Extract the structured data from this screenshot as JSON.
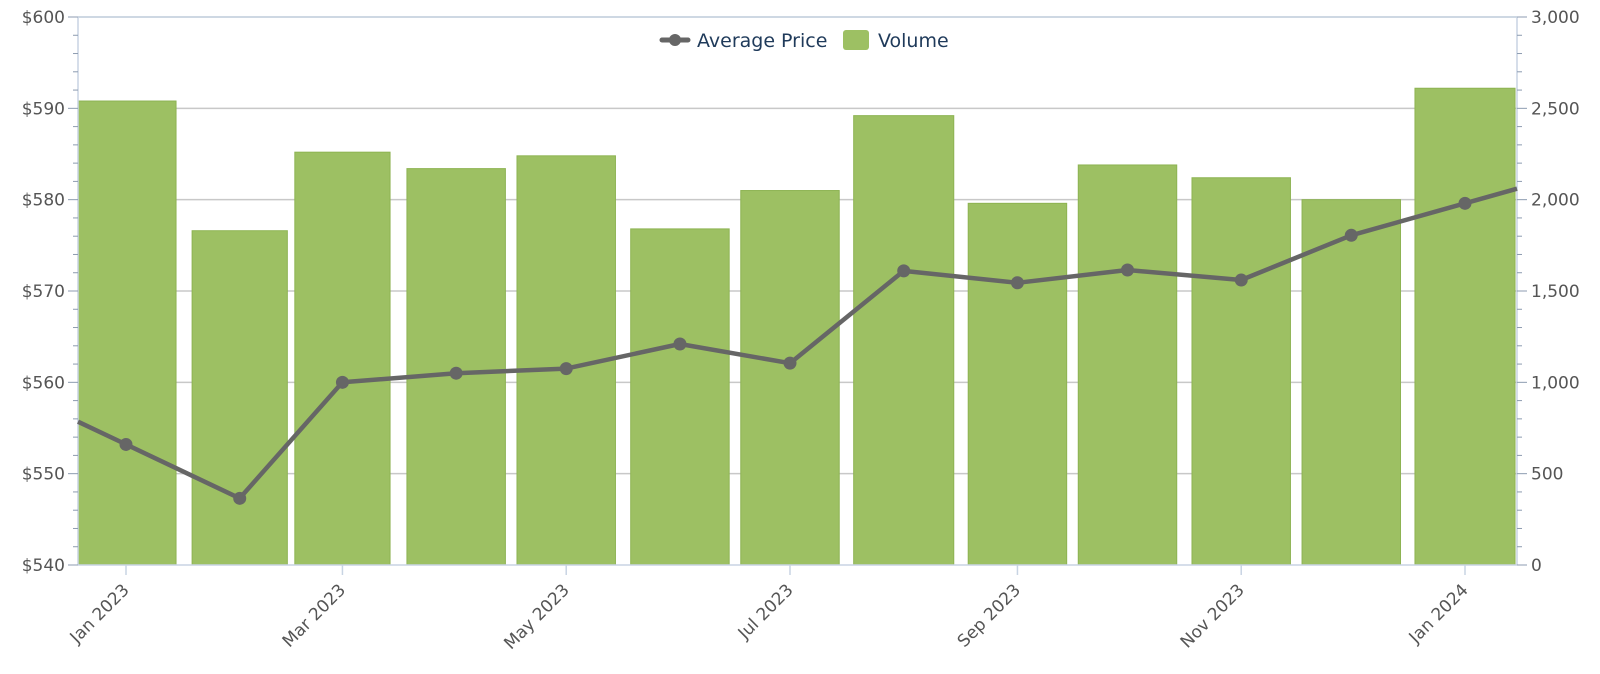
{
  "chart_data": {
    "type": "bar",
    "months": [
      "2023-01",
      "2023-02",
      "2023-03",
      "2023-04",
      "2023-05",
      "2023-06",
      "2023-07",
      "2023-08",
      "2023-09",
      "2023-10",
      "2023-11",
      "2023-12",
      "2024-01"
    ],
    "x_tick_labels": [
      "Jan 2023",
      "Mar 2023",
      "May 2023",
      "Jul 2023",
      "Sep 2023",
      "Nov 2023",
      "Jan 2024"
    ],
    "series": [
      {
        "name": "Volume",
        "type": "bar",
        "axis": "right",
        "values": [
          2540,
          1830,
          2260,
          2170,
          2240,
          1840,
          2050,
          2460,
          1980,
          2190,
          2120,
          2000,
          2610
        ]
      },
      {
        "name": "Average Price",
        "type": "line",
        "axis": "left",
        "values": [
          553.2,
          547.3,
          560.0,
          561.0,
          561.5,
          564.2,
          562.1,
          572.2,
          570.9,
          572.3,
          571.2,
          576.1,
          579.6
        ]
      }
    ],
    "left_axis": {
      "ylim": [
        540,
        600
      ],
      "tick_labels": [
        "$540",
        "$550",
        "$560",
        "$570",
        "$580",
        "$590",
        "$600"
      ]
    },
    "right_axis": {
      "ylim": [
        0,
        3000
      ],
      "tick_labels": [
        "0",
        "500",
        "1,000",
        "1,500",
        "2,000",
        "2,500",
        "3,000"
      ]
    },
    "legend": {
      "position": "top-center"
    },
    "grid": true,
    "colors": {
      "bar": "#9dc063",
      "line": "#666666",
      "grid": "#c8c8c8",
      "axis": "#c8d4e3"
    }
  }
}
